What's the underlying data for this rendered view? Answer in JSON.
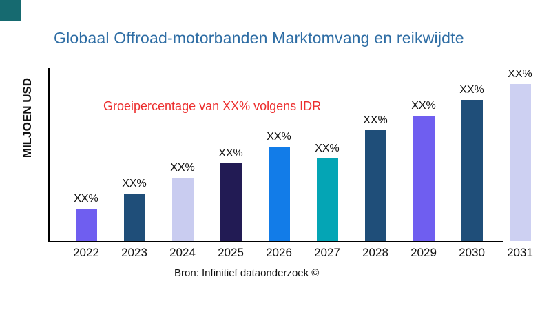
{
  "branding": {
    "logo_color": "#166A70"
  },
  "header": {
    "title_color": "#2E6DA4"
  },
  "annotation": {
    "text": "Groeipercentage van XX% volgens IDR",
    "color": "#EC2D2D"
  },
  "footer": {
    "source": "Bron: Infinitief dataonderzoek ©"
  },
  "chart_data": {
    "type": "bar",
    "title": "Globaal Offroad-motorbanden Marktomvang en reikwijdte",
    "ylabel": "MILJOEN USD",
    "xlabel": "",
    "categories": [
      "2022",
      "2023",
      "2024",
      "2025",
      "2026",
      "2027",
      "2028",
      "2029",
      "2030",
      "2031"
    ],
    "value_labels": [
      "XX%",
      "XX%",
      "XX%",
      "XX%",
      "XX%",
      "XX%",
      "XX%",
      "XX%",
      "XX%",
      "XX%"
    ],
    "relative_heights": [
      47,
      69,
      92,
      113,
      137,
      120,
      161,
      182,
      205,
      228
    ],
    "bar_colors": [
      "#6F5EF0",
      "#1F4E79",
      "#C9CCF0",
      "#221B54",
      "#127CE8",
      "#04A5B5",
      "#1F4E79",
      "#6F5EF0",
      "#1F4E79",
      "#CDD0F2"
    ],
    "axis_color": "#000000",
    "grid": false,
    "legend": false
  }
}
